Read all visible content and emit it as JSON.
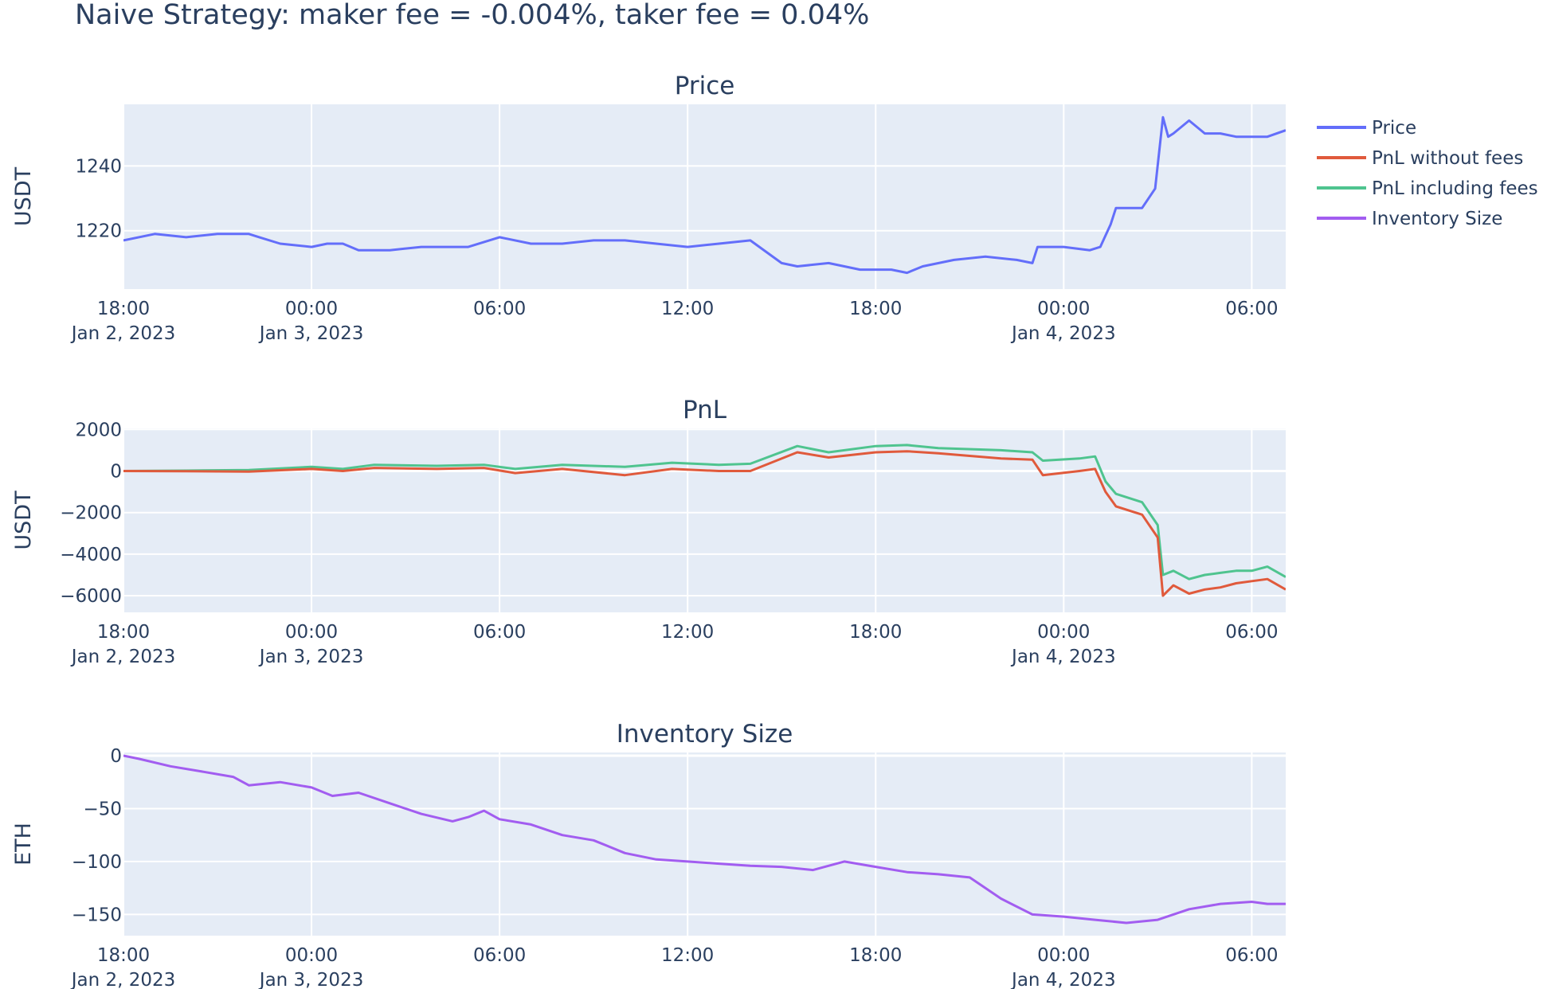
{
  "figure": {
    "title": "Naive Strategy: maker fee = -0.004%, taker fee = 0.04%"
  },
  "legend": {
    "entries": [
      {
        "name": "Price",
        "color": "#636efa"
      },
      {
        "name": "PnL without fees",
        "color": "#e05a3c"
      },
      {
        "name": "PnL including fees",
        "color": "#4fc48f"
      },
      {
        "name": "Inventory Size",
        "color": "#a25df0"
      }
    ]
  },
  "colors": {
    "plot_bg": "#e5ecf6",
    "grid": "#ffffff",
    "text": "#2a3f5f"
  },
  "chart_data": [
    {
      "type": "line",
      "title": "Price",
      "xlabel": "",
      "ylabel": "USDT",
      "xlim": [
        "2023-01-02 18:00",
        "2023-01-04 07:05"
      ],
      "ylim": [
        1202,
        1259
      ],
      "x_ticks": [
        {
          "t": "2023-01-02 18:00",
          "label": "18:00",
          "date": "Jan 2, 2023"
        },
        {
          "t": "2023-01-03 00:00",
          "label": "00:00",
          "date": "Jan 3, 2023"
        },
        {
          "t": "2023-01-03 06:00",
          "label": "06:00",
          "date": ""
        },
        {
          "t": "2023-01-03 12:00",
          "label": "12:00",
          "date": ""
        },
        {
          "t": "2023-01-03 18:00",
          "label": "18:00",
          "date": ""
        },
        {
          "t": "2023-01-04 00:00",
          "label": "00:00",
          "date": "Jan 4, 2023"
        },
        {
          "t": "2023-01-04 06:00",
          "label": "06:00",
          "date": ""
        }
      ],
      "y_ticks": [
        {
          "v": 1220,
          "label": "1220"
        },
        {
          "v": 1240,
          "label": "1240"
        }
      ],
      "series": [
        {
          "name": "Price",
          "color": "#636efa",
          "x": [
            "2023-01-02 18:00",
            "2023-01-02 19:00",
            "2023-01-02 20:00",
            "2023-01-02 21:00",
            "2023-01-02 22:00",
            "2023-01-02 22:20",
            "2023-01-02 23:00",
            "2023-01-03 00:00",
            "2023-01-03 00:30",
            "2023-01-03 01:00",
            "2023-01-03 01:30",
            "2023-01-03 02:30",
            "2023-01-03 03:30",
            "2023-01-03 05:00",
            "2023-01-03 06:00",
            "2023-01-03 07:00",
            "2023-01-03 08:00",
            "2023-01-03 09:00",
            "2023-01-03 10:00",
            "2023-01-03 11:00",
            "2023-01-03 12:00",
            "2023-01-03 13:00",
            "2023-01-03 14:00",
            "2023-01-03 15:00",
            "2023-01-03 15:30",
            "2023-01-03 16:30",
            "2023-01-03 17:30",
            "2023-01-03 18:30",
            "2023-01-03 19:00",
            "2023-01-03 19:30",
            "2023-01-03 20:30",
            "2023-01-03 21:30",
            "2023-01-03 22:30",
            "2023-01-03 23:00",
            "2023-01-03 23:10",
            "2023-01-04 00:00",
            "2023-01-04 00:50",
            "2023-01-04 01:10",
            "2023-01-04 01:30",
            "2023-01-04 01:40",
            "2023-01-04 02:30",
            "2023-01-04 02:55",
            "2023-01-04 03:10",
            "2023-01-04 03:20",
            "2023-01-04 03:30",
            "2023-01-04 04:00",
            "2023-01-04 04:30",
            "2023-01-04 05:00",
            "2023-01-04 05:30",
            "2023-01-04 06:00",
            "2023-01-04 06:30",
            "2023-01-04 07:05"
          ],
          "y": [
            1217,
            1219,
            1218,
            1219,
            1219,
            1218,
            1216,
            1215,
            1216,
            1216,
            1214,
            1214,
            1215,
            1215,
            1218,
            1216,
            1216,
            1217,
            1217,
            1216,
            1215,
            1216,
            1217,
            1210,
            1209,
            1210,
            1208,
            1208,
            1207,
            1209,
            1211,
            1212,
            1211,
            1210,
            1215,
            1215,
            1214,
            1215,
            1222,
            1227,
            1227,
            1233,
            1255,
            1249,
            1250,
            1254,
            1250,
            1250,
            1249,
            1249,
            1249,
            1251
          ]
        }
      ]
    },
    {
      "type": "line",
      "title": "PnL",
      "xlabel": "",
      "ylabel": "USDT",
      "xlim": [
        "2023-01-02 18:00",
        "2023-01-04 07:05"
      ],
      "ylim": [
        -6800,
        2050
      ],
      "x_ticks": [
        {
          "t": "2023-01-02 18:00",
          "label": "18:00",
          "date": "Jan 2, 2023"
        },
        {
          "t": "2023-01-03 00:00",
          "label": "00:00",
          "date": "Jan 3, 2023"
        },
        {
          "t": "2023-01-03 06:00",
          "label": "06:00",
          "date": ""
        },
        {
          "t": "2023-01-03 12:00",
          "label": "12:00",
          "date": ""
        },
        {
          "t": "2023-01-03 18:00",
          "label": "18:00",
          "date": ""
        },
        {
          "t": "2023-01-04 00:00",
          "label": "00:00",
          "date": "Jan 4, 2023"
        },
        {
          "t": "2023-01-04 06:00",
          "label": "06:00",
          "date": ""
        }
      ],
      "y_ticks": [
        {
          "v": 2000,
          "label": "2000"
        },
        {
          "v": 0,
          "label": "0"
        },
        {
          "v": -2000,
          "label": "−2000"
        },
        {
          "v": -4000,
          "label": "−4000"
        },
        {
          "v": -6000,
          "label": "−6000"
        }
      ],
      "series": [
        {
          "name": "PnL including fees",
          "color": "#4fc48f",
          "x": [
            "2023-01-02 18:00",
            "2023-01-02 20:00",
            "2023-01-02 22:00",
            "2023-01-03 00:00",
            "2023-01-03 01:00",
            "2023-01-03 02:00",
            "2023-01-03 04:00",
            "2023-01-03 05:30",
            "2023-01-03 06:30",
            "2023-01-03 08:00",
            "2023-01-03 10:00",
            "2023-01-03 11:30",
            "2023-01-03 13:00",
            "2023-01-03 14:00",
            "2023-01-03 15:30",
            "2023-01-03 16:30",
            "2023-01-03 18:00",
            "2023-01-03 19:00",
            "2023-01-03 20:00",
            "2023-01-03 22:00",
            "2023-01-03 23:00",
            "2023-01-03 23:20",
            "2023-01-04 00:30",
            "2023-01-04 01:00",
            "2023-01-04 01:20",
            "2023-01-04 01:40",
            "2023-01-04 02:30",
            "2023-01-04 03:00",
            "2023-01-04 03:10",
            "2023-01-04 03:30",
            "2023-01-04 04:00",
            "2023-01-04 04:30",
            "2023-01-04 05:00",
            "2023-01-04 05:30",
            "2023-01-04 06:00",
            "2023-01-04 06:30",
            "2023-01-04 07:05"
          ],
          "y": [
            0,
            20,
            50,
            200,
            100,
            300,
            250,
            300,
            100,
            300,
            200,
            400,
            300,
            350,
            1200,
            900,
            1200,
            1250,
            1100,
            1000,
            900,
            500,
            600,
            700,
            -500,
            -1100,
            -1500,
            -2600,
            -5000,
            -4800,
            -5200,
            -5000,
            -4900,
            -4800,
            -4800,
            -4600,
            -5100
          ]
        },
        {
          "name": "PnL without fees",
          "color": "#e05a3c",
          "x": [
            "2023-01-02 18:00",
            "2023-01-02 20:00",
            "2023-01-02 22:00",
            "2023-01-03 00:00",
            "2023-01-03 01:00",
            "2023-01-03 02:00",
            "2023-01-03 04:00",
            "2023-01-03 05:30",
            "2023-01-03 06:30",
            "2023-01-03 08:00",
            "2023-01-03 10:00",
            "2023-01-03 11:30",
            "2023-01-03 13:00",
            "2023-01-03 14:00",
            "2023-01-03 15:30",
            "2023-01-03 16:30",
            "2023-01-03 18:00",
            "2023-01-03 19:00",
            "2023-01-03 20:00",
            "2023-01-03 22:00",
            "2023-01-03 23:00",
            "2023-01-03 23:20",
            "2023-01-04 00:30",
            "2023-01-04 01:00",
            "2023-01-04 01:20",
            "2023-01-04 01:40",
            "2023-01-04 02:30",
            "2023-01-04 03:00",
            "2023-01-04 03:10",
            "2023-01-04 03:30",
            "2023-01-04 04:00",
            "2023-01-04 04:30",
            "2023-01-04 05:00",
            "2023-01-04 05:30",
            "2023-01-04 06:00",
            "2023-01-04 06:30",
            "2023-01-04 07:05"
          ],
          "y": [
            0,
            -10,
            -30,
            100,
            0,
            150,
            100,
            150,
            -100,
            100,
            -200,
            100,
            0,
            0,
            900,
            650,
            900,
            950,
            850,
            600,
            550,
            -200,
            0,
            100,
            -1000,
            -1700,
            -2100,
            -3200,
            -6000,
            -5500,
            -5900,
            -5700,
            -5600,
            -5400,
            -5300,
            -5200,
            -5700
          ]
        }
      ]
    },
    {
      "type": "line",
      "title": "Inventory Size",
      "xlabel": "",
      "ylabel": "ETH",
      "xlim": [
        "2023-01-02 18:00",
        "2023-01-04 07:05"
      ],
      "ylim": [
        -170,
        3
      ],
      "x_ticks": [
        {
          "t": "2023-01-02 18:00",
          "label": "18:00",
          "date": "Jan 2, 2023"
        },
        {
          "t": "2023-01-03 00:00",
          "label": "00:00",
          "date": "Jan 3, 2023"
        },
        {
          "t": "2023-01-03 06:00",
          "label": "06:00",
          "date": ""
        },
        {
          "t": "2023-01-03 12:00",
          "label": "12:00",
          "date": ""
        },
        {
          "t": "2023-01-03 18:00",
          "label": "18:00",
          "date": ""
        },
        {
          "t": "2023-01-04 00:00",
          "label": "00:00",
          "date": "Jan 4, 2023"
        },
        {
          "t": "2023-01-04 06:00",
          "label": "06:00",
          "date": ""
        }
      ],
      "y_ticks": [
        {
          "v": 0,
          "label": "0"
        },
        {
          "v": -50,
          "label": "−50"
        },
        {
          "v": -100,
          "label": "−100"
        },
        {
          "v": -150,
          "label": "−150"
        }
      ],
      "series": [
        {
          "name": "Inventory Size",
          "color": "#a25df0",
          "x": [
            "2023-01-02 18:00",
            "2023-01-02 18:30",
            "2023-01-02 19:30",
            "2023-01-02 20:30",
            "2023-01-02 21:30",
            "2023-01-02 22:00",
            "2023-01-02 23:00",
            "2023-01-03 00:00",
            "2023-01-03 00:40",
            "2023-01-03 01:30",
            "2023-01-03 02:30",
            "2023-01-03 03:30",
            "2023-01-03 04:30",
            "2023-01-03 05:00",
            "2023-01-03 05:30",
            "2023-01-03 06:00",
            "2023-01-03 07:00",
            "2023-01-03 08:00",
            "2023-01-03 09:00",
            "2023-01-03 10:00",
            "2023-01-03 11:00",
            "2023-01-03 12:00",
            "2023-01-03 13:00",
            "2023-01-03 14:00",
            "2023-01-03 15:00",
            "2023-01-03 16:00",
            "2023-01-03 17:00",
            "2023-01-03 18:00",
            "2023-01-03 19:00",
            "2023-01-03 20:00",
            "2023-01-03 21:00",
            "2023-01-03 22:00",
            "2023-01-03 23:00",
            "2023-01-04 00:00",
            "2023-01-04 01:00",
            "2023-01-04 02:00",
            "2023-01-04 03:00",
            "2023-01-04 04:00",
            "2023-01-04 05:00",
            "2023-01-04 06:00",
            "2023-01-04 06:30",
            "2023-01-04 07:05"
          ],
          "y": [
            0,
            -3,
            -10,
            -15,
            -20,
            -28,
            -25,
            -30,
            -38,
            -35,
            -45,
            -55,
            -62,
            -58,
            -52,
            -60,
            -65,
            -75,
            -80,
            -92,
            -98,
            -100,
            -102,
            -104,
            -105,
            -108,
            -100,
            -105,
            -110,
            -112,
            -115,
            -135,
            -150,
            -152,
            -155,
            -158,
            -155,
            -145,
            -140,
            -138,
            -140,
            -140
          ]
        }
      ]
    }
  ]
}
